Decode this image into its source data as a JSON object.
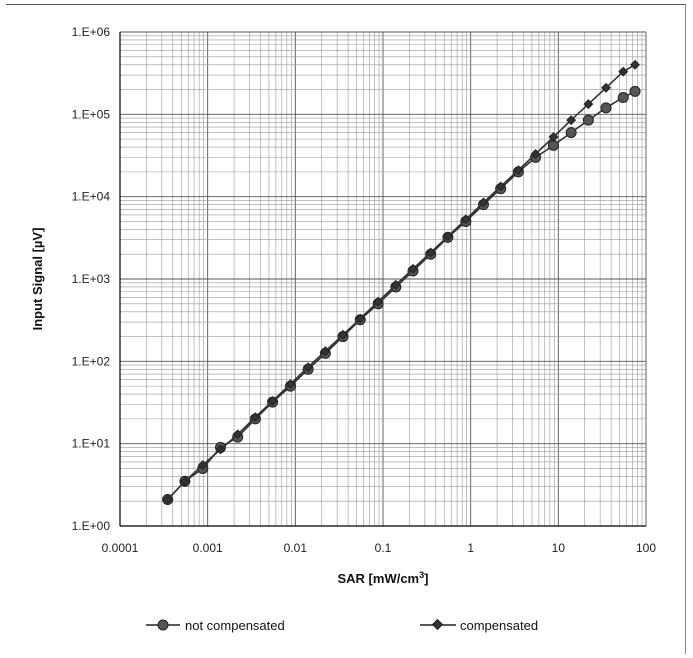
{
  "chart_data": {
    "type": "line",
    "x_scale": "log",
    "y_scale": "log",
    "xlim": [
      0.0001,
      100
    ],
    "ylim": [
      1,
      1000000
    ],
    "grid": true,
    "xlabel": "SAR [mW/cm",
    "xlabel_sup": "3",
    "xlabel_end": "]",
    "ylabel": "Input Signal [µV]",
    "x_ticks": [
      "0.0001",
      "0.001",
      "0.01",
      "0.1",
      "1",
      "10",
      "100"
    ],
    "y_ticks": [
      "1.E+00",
      "1.E+01",
      "1.E+02",
      "1.E+03",
      "1.E+04",
      "1.E+05",
      "1.E+06"
    ],
    "legend_position": "bottom",
    "series": [
      {
        "name": "not compensated",
        "marker": "circle",
        "color": "#333333",
        "x": [
          0.00035,
          0.00055,
          0.00088,
          0.0014,
          0.0022,
          0.0035,
          0.0055,
          0.0088,
          0.014,
          0.022,
          0.035,
          0.055,
          0.088,
          0.14,
          0.22,
          0.35,
          0.55,
          0.88,
          1.4,
          2.2,
          3.5,
          5.5,
          8.8,
          14,
          22,
          35,
          55,
          75
        ],
        "y": [
          2.1,
          3.5,
          5,
          9,
          12,
          20,
          32,
          50,
          80,
          125,
          200,
          320,
          500,
          800,
          1250,
          2000,
          3200,
          5000,
          8000,
          12500,
          20000,
          30000,
          42000,
          60000,
          85000,
          120000,
          160000,
          190000
        ]
      },
      {
        "name": "compensated",
        "marker": "diamond",
        "color": "#333333",
        "x": [
          0.00035,
          0.00055,
          0.00088,
          0.0014,
          0.0022,
          0.0035,
          0.0055,
          0.0088,
          0.014,
          0.022,
          0.035,
          0.055,
          0.088,
          0.14,
          0.22,
          0.35,
          0.55,
          0.88,
          1.4,
          2.2,
          3.5,
          5.5,
          8.8,
          14,
          22,
          35,
          55,
          75
        ],
        "y": [
          2.1,
          3.5,
          5.5,
          8.5,
          13,
          21,
          33,
          53,
          85,
          133,
          210,
          330,
          530,
          850,
          1330,
          2100,
          3300,
          5300,
          8500,
          13300,
          21000,
          33000,
          53000,
          85000,
          133000,
          210000,
          330000,
          400000
        ]
      }
    ]
  }
}
